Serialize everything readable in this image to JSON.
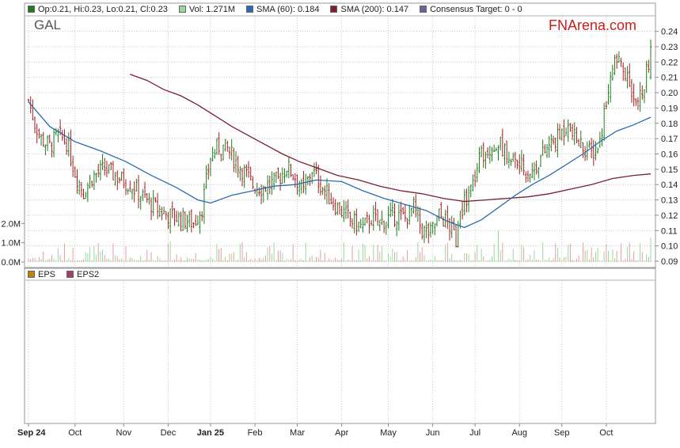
{
  "legend": [
    {
      "label": "Op:0.21, Hi:0.23, Lo:0.21, Cl:0.23",
      "color": "#1e7d1e"
    },
    {
      "label": "Vol: 1.271M",
      "color": "#9ad99a"
    },
    {
      "label": "SMA (60): 0.184",
      "color": "#2b6cb0"
    },
    {
      "label": "SMA (200): 0.147",
      "color": "#7a1f2e"
    },
    {
      "label": "Consensus Target: 0 - 0",
      "color": "#666699"
    }
  ],
  "legend2": [
    {
      "label": "EPS",
      "color": "#b8860b"
    },
    {
      "label": "EPS2",
      "color": "#a0406a"
    }
  ],
  "ticker": "GAL",
  "brand": "FNArena.com",
  "chart_data": {
    "type": "candlestick",
    "symbol": "GAL",
    "y_ticks": [
      0.24,
      0.23,
      0.22,
      0.21,
      0.2,
      0.19,
      0.18,
      0.17,
      0.16,
      0.15,
      0.14,
      0.13,
      0.12,
      0.11,
      0.1,
      0.09
    ],
    "y_tick_labels": [
      "0.24",
      "0.23",
      "0.22",
      "0.21",
      "0.20",
      "0.19",
      "0.18",
      "0.17",
      "0.16",
      "0.15",
      "0.14",
      "0.13",
      "0.12",
      "0.11",
      "0.10",
      "0.09"
    ],
    "ylim": [
      0.09,
      0.245
    ],
    "volume_ticks": [
      "2.0M",
      "1.0M",
      "0.0M"
    ],
    "volume_tick_values": [
      2.0,
      1.0,
      0.0
    ],
    "volume_max": 2.3,
    "months": [
      {
        "label": "Sep 24",
        "index": 0,
        "bold": true
      },
      {
        "label": "Oct",
        "index": 22,
        "bold": false
      },
      {
        "label": "Nov",
        "index": 45,
        "bold": false
      },
      {
        "label": "Dec",
        "index": 66,
        "bold": false
      },
      {
        "label": "Jan 25",
        "index": 86,
        "bold": true
      },
      {
        "label": "Feb",
        "index": 107,
        "bold": false
      },
      {
        "label": "Mar",
        "index": 127,
        "bold": false
      },
      {
        "label": "Apr",
        "index": 148,
        "bold": false
      },
      {
        "label": "May",
        "index": 170,
        "bold": false
      },
      {
        "label": "Jun",
        "index": 191,
        "bold": false
      },
      {
        "label": "Jul",
        "index": 211,
        "bold": false
      },
      {
        "label": "Aug",
        "index": 232,
        "bold": false
      },
      {
        "label": "Sep",
        "index": 252,
        "bold": false
      },
      {
        "label": "Oct",
        "index": 273,
        "bold": false
      }
    ],
    "n_days": 295,
    "close_anchors": [
      [
        0,
        0.195
      ],
      [
        3,
        0.18
      ],
      [
        6,
        0.17
      ],
      [
        10,
        0.165
      ],
      [
        14,
        0.172
      ],
      [
        18,
        0.168
      ],
      [
        22,
        0.148
      ],
      [
        26,
        0.135
      ],
      [
        30,
        0.145
      ],
      [
        36,
        0.15
      ],
      [
        42,
        0.145
      ],
      [
        48,
        0.14
      ],
      [
        54,
        0.132
      ],
      [
        60,
        0.125
      ],
      [
        66,
        0.12
      ],
      [
        72,
        0.118
      ],
      [
        78,
        0.115
      ],
      [
        82,
        0.125
      ],
      [
        86,
        0.158
      ],
      [
        90,
        0.165
      ],
      [
        94,
        0.163
      ],
      [
        98,
        0.155
      ],
      [
        102,
        0.148
      ],
      [
        106,
        0.14
      ],
      [
        110,
        0.138
      ],
      [
        114,
        0.14
      ],
      [
        118,
        0.143
      ],
      [
        122,
        0.152
      ],
      [
        126,
        0.145
      ],
      [
        130,
        0.135
      ],
      [
        134,
        0.15
      ],
      [
        138,
        0.14
      ],
      [
        142,
        0.132
      ],
      [
        146,
        0.125
      ],
      [
        150,
        0.12
      ],
      [
        154,
        0.115
      ],
      [
        158,
        0.112
      ],
      [
        162,
        0.118
      ],
      [
        166,
        0.115
      ],
      [
        170,
        0.118
      ],
      [
        174,
        0.12
      ],
      [
        178,
        0.118
      ],
      [
        182,
        0.125
      ],
      [
        186,
        0.11
      ],
      [
        190,
        0.108
      ],
      [
        194,
        0.12
      ],
      [
        198,
        0.115
      ],
      [
        202,
        0.105
      ],
      [
        206,
        0.13
      ],
      [
        210,
        0.14
      ],
      [
        214,
        0.16
      ],
      [
        218,
        0.165
      ],
      [
        222,
        0.168
      ],
      [
        226,
        0.16
      ],
      [
        230,
        0.155
      ],
      [
        234,
        0.15
      ],
      [
        238,
        0.148
      ],
      [
        242,
        0.158
      ],
      [
        246,
        0.165
      ],
      [
        250,
        0.17
      ],
      [
        254,
        0.178
      ],
      [
        258,
        0.17
      ],
      [
        262,
        0.165
      ],
      [
        266,
        0.16
      ],
      [
        270,
        0.168
      ],
      [
        274,
        0.205
      ],
      [
        278,
        0.222
      ],
      [
        282,
        0.21
      ],
      [
        286,
        0.2
      ],
      [
        290,
        0.195
      ],
      [
        294,
        0.23
      ]
    ],
    "sma60": [
      [
        0,
        0.194
      ],
      [
        10,
        0.178
      ],
      [
        22,
        0.168
      ],
      [
        34,
        0.162
      ],
      [
        46,
        0.155
      ],
      [
        58,
        0.146
      ],
      [
        70,
        0.138
      ],
      [
        80,
        0.13
      ],
      [
        86,
        0.128
      ],
      [
        96,
        0.133
      ],
      [
        106,
        0.136
      ],
      [
        116,
        0.139
      ],
      [
        126,
        0.14
      ],
      [
        136,
        0.143
      ],
      [
        148,
        0.142
      ],
      [
        158,
        0.136
      ],
      [
        168,
        0.131
      ],
      [
        178,
        0.127
      ],
      [
        188,
        0.123
      ],
      [
        198,
        0.116
      ],
      [
        206,
        0.112
      ],
      [
        214,
        0.117
      ],
      [
        222,
        0.125
      ],
      [
        230,
        0.133
      ],
      [
        238,
        0.14
      ],
      [
        246,
        0.146
      ],
      [
        254,
        0.153
      ],
      [
        262,
        0.16
      ],
      [
        270,
        0.168
      ],
      [
        278,
        0.175
      ],
      [
        286,
        0.179
      ],
      [
        294,
        0.184
      ]
    ],
    "sma200": [
      [
        48,
        0.212
      ],
      [
        56,
        0.208
      ],
      [
        64,
        0.202
      ],
      [
        72,
        0.198
      ],
      [
        80,
        0.192
      ],
      [
        88,
        0.185
      ],
      [
        96,
        0.178
      ],
      [
        104,
        0.172
      ],
      [
        112,
        0.166
      ],
      [
        120,
        0.16
      ],
      [
        128,
        0.155
      ],
      [
        136,
        0.151
      ],
      [
        146,
        0.146
      ],
      [
        156,
        0.143
      ],
      [
        166,
        0.139
      ],
      [
        176,
        0.136
      ],
      [
        186,
        0.134
      ],
      [
        196,
        0.131
      ],
      [
        206,
        0.129
      ],
      [
        216,
        0.13
      ],
      [
        226,
        0.131
      ],
      [
        236,
        0.132
      ],
      [
        246,
        0.134
      ],
      [
        256,
        0.137
      ],
      [
        266,
        0.14
      ],
      [
        276,
        0.144
      ],
      [
        286,
        0.146
      ],
      [
        294,
        0.147
      ]
    ],
    "last": {
      "open": 0.21,
      "high": 0.23,
      "low": 0.21,
      "close": 0.23,
      "volume_m": 1.271,
      "sma60": 0.184,
      "sma200": 0.147
    },
    "colors": {
      "up": "#1e7d1e",
      "down": "#a51f1f",
      "sma60": "#2b6cb0",
      "sma200": "#7a1f2e",
      "vol_up": "#9ad99a",
      "vol_down": "#e2a0a0",
      "grid": "#c8c8c8",
      "panel_border": "#9a9a9a"
    }
  }
}
